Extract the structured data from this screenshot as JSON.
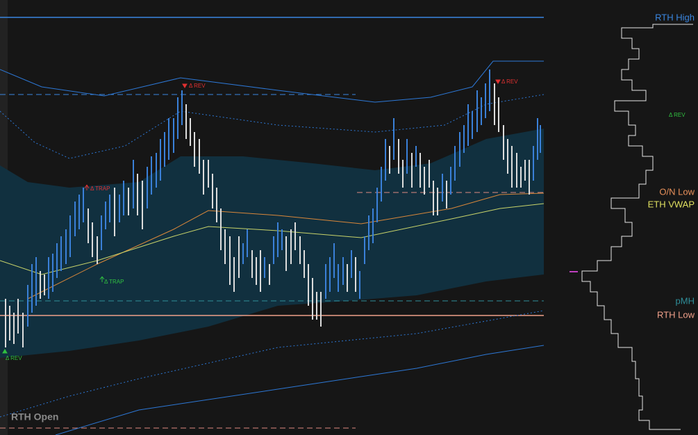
{
  "labels": {
    "rth_high": "RTH High",
    "on_low": "O/N Low",
    "eth_vwap": "ETH VWAP",
    "pmh": "pMH",
    "rth_low": "RTH Low",
    "rth_open": "RTH Open",
    "signals": [
      "Δ REV",
      "Δ TRAP",
      "Δ TRAP",
      "Δ REV",
      "Δ REV",
      "Δ REV"
    ]
  }
}
